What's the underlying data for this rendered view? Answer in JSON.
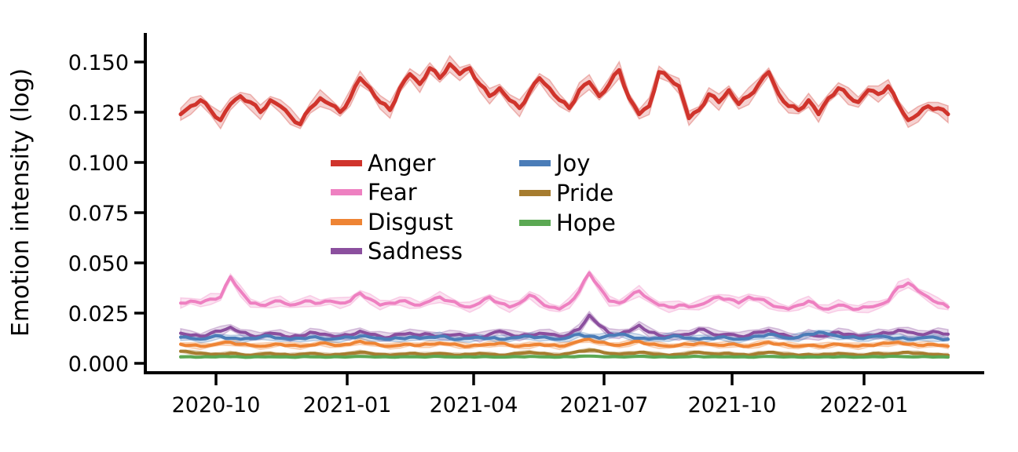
{
  "chart_data": {
    "type": "line",
    "title": "",
    "xlabel": "",
    "ylabel": "Emotion intensity (log)",
    "x_tick_labels": [
      "2020-10",
      "2021-01",
      "2021-04",
      "2021-07",
      "2021-10",
      "2022-01"
    ],
    "y_tick_labels": [
      "0.150",
      "0.125",
      "0.100",
      "0.075",
      "0.050",
      "0.025",
      "0.000"
    ],
    "y_tick_values": [
      0.15,
      0.125,
      0.1,
      0.075,
      0.05,
      0.025,
      0.0
    ],
    "ylim": [
      -0.004,
      0.165
    ],
    "x_start": "2020-09-06",
    "x_end": "2022-02-27",
    "x_step_days": 7,
    "grid": false,
    "legend_position": "upper-center-inside",
    "bands": "shaded confidence interval around each line",
    "series": [
      {
        "name": "Anger",
        "color": "#d0342c",
        "band": 0.003,
        "values": [
          0.124,
          0.128,
          0.131,
          0.126,
          0.121,
          0.129,
          0.133,
          0.13,
          0.125,
          0.131,
          0.128,
          0.123,
          0.119,
          0.127,
          0.132,
          0.129,
          0.125,
          0.132,
          0.142,
          0.137,
          0.13,
          0.126,
          0.137,
          0.144,
          0.139,
          0.147,
          0.142,
          0.149,
          0.144,
          0.147,
          0.139,
          0.133,
          0.137,
          0.131,
          0.127,
          0.135,
          0.142,
          0.137,
          0.131,
          0.127,
          0.136,
          0.14,
          0.133,
          0.139,
          0.146,
          0.132,
          0.124,
          0.128,
          0.145,
          0.142,
          0.138,
          0.122,
          0.126,
          0.134,
          0.13,
          0.136,
          0.129,
          0.133,
          0.139,
          0.145,
          0.134,
          0.128,
          0.126,
          0.131,
          0.124,
          0.132,
          0.137,
          0.133,
          0.13,
          0.136,
          0.134,
          0.138,
          0.129,
          0.121,
          0.124,
          0.128,
          0.127,
          0.124
        ]
      },
      {
        "name": "Fear",
        "color": "#ee80c1",
        "band": 0.002,
        "values": [
          0.03,
          0.031,
          0.03,
          0.032,
          0.033,
          0.043,
          0.036,
          0.03,
          0.029,
          0.03,
          0.031,
          0.029,
          0.03,
          0.031,
          0.03,
          0.031,
          0.03,
          0.031,
          0.035,
          0.032,
          0.029,
          0.03,
          0.031,
          0.03,
          0.029,
          0.031,
          0.033,
          0.031,
          0.029,
          0.028,
          0.03,
          0.033,
          0.03,
          0.028,
          0.03,
          0.034,
          0.031,
          0.028,
          0.027,
          0.03,
          0.036,
          0.045,
          0.038,
          0.031,
          0.03,
          0.033,
          0.036,
          0.032,
          0.029,
          0.028,
          0.029,
          0.028,
          0.029,
          0.031,
          0.033,
          0.032,
          0.03,
          0.033,
          0.032,
          0.03,
          0.028,
          0.027,
          0.029,
          0.031,
          0.028,
          0.027,
          0.029,
          0.028,
          0.027,
          0.028,
          0.029,
          0.031,
          0.038,
          0.04,
          0.036,
          0.033,
          0.03,
          0.028
        ]
      },
      {
        "name": "Disgust",
        "color": "#ee8434",
        "band": 0.0012,
        "values": [
          0.0095,
          0.009,
          0.0085,
          0.009,
          0.01,
          0.0105,
          0.0095,
          0.009,
          0.0085,
          0.009,
          0.0095,
          0.009,
          0.0085,
          0.009,
          0.01,
          0.0095,
          0.009,
          0.0095,
          0.011,
          0.01,
          0.009,
          0.0085,
          0.009,
          0.0095,
          0.009,
          0.0095,
          0.01,
          0.0095,
          0.009,
          0.0085,
          0.009,
          0.0095,
          0.01,
          0.009,
          0.0085,
          0.009,
          0.0095,
          0.009,
          0.0085,
          0.0095,
          0.011,
          0.012,
          0.0105,
          0.0095,
          0.009,
          0.01,
          0.011,
          0.0095,
          0.009,
          0.0085,
          0.009,
          0.0095,
          0.01,
          0.0095,
          0.009,
          0.0095,
          0.009,
          0.0085,
          0.0095,
          0.0105,
          0.0095,
          0.009,
          0.0085,
          0.009,
          0.0085,
          0.009,
          0.0095,
          0.009,
          0.0085,
          0.009,
          0.0095,
          0.01,
          0.0105,
          0.0095,
          0.009,
          0.0095,
          0.009,
          0.0085
        ]
      },
      {
        "name": "Sadness",
        "color": "#8b4f9e",
        "band": 0.0018,
        "values": [
          0.015,
          0.014,
          0.0135,
          0.015,
          0.016,
          0.018,
          0.0155,
          0.014,
          0.0135,
          0.015,
          0.0145,
          0.013,
          0.0135,
          0.0155,
          0.0145,
          0.014,
          0.0135,
          0.014,
          0.016,
          0.0145,
          0.0135,
          0.013,
          0.0145,
          0.015,
          0.014,
          0.0145,
          0.0135,
          0.014,
          0.0145,
          0.0135,
          0.013,
          0.0145,
          0.016,
          0.0145,
          0.0135,
          0.014,
          0.015,
          0.0145,
          0.0135,
          0.0145,
          0.017,
          0.024,
          0.019,
          0.015,
          0.0145,
          0.016,
          0.019,
          0.0155,
          0.014,
          0.0135,
          0.014,
          0.0145,
          0.017,
          0.0155,
          0.014,
          0.0145,
          0.0135,
          0.014,
          0.0155,
          0.0165,
          0.0145,
          0.0135,
          0.013,
          0.0145,
          0.0135,
          0.014,
          0.0155,
          0.0145,
          0.0135,
          0.014,
          0.0145,
          0.015,
          0.0165,
          0.0155,
          0.0145,
          0.015,
          0.0155,
          0.0145
        ]
      },
      {
        "name": "Joy",
        "color": "#4b7db8",
        "band": 0.0015,
        "values": [
          0.013,
          0.0125,
          0.012,
          0.013,
          0.0135,
          0.0125,
          0.012,
          0.0125,
          0.013,
          0.0135,
          0.0125,
          0.012,
          0.0125,
          0.013,
          0.0125,
          0.012,
          0.0125,
          0.013,
          0.0135,
          0.013,
          0.0125,
          0.012,
          0.0125,
          0.013,
          0.0125,
          0.013,
          0.0135,
          0.0125,
          0.012,
          0.0125,
          0.013,
          0.0125,
          0.012,
          0.0125,
          0.013,
          0.0135,
          0.013,
          0.0125,
          0.012,
          0.013,
          0.0145,
          0.0135,
          0.0125,
          0.014,
          0.0145,
          0.0135,
          0.0125,
          0.012,
          0.0125,
          0.013,
          0.0135,
          0.0125,
          0.012,
          0.0125,
          0.013,
          0.0125,
          0.012,
          0.0125,
          0.0135,
          0.0145,
          0.0135,
          0.0125,
          0.013,
          0.0145,
          0.0155,
          0.0145,
          0.0135,
          0.013,
          0.0125,
          0.013,
          0.0135,
          0.013,
          0.0125,
          0.012,
          0.0125,
          0.013,
          0.0125,
          0.012
        ]
      },
      {
        "name": "Pride",
        "color": "#a67c2f",
        "band": 0.0008,
        "values": [
          0.006,
          0.0055,
          0.005,
          0.0045,
          0.0045,
          0.005,
          0.0045,
          0.004,
          0.0045,
          0.005,
          0.0045,
          0.004,
          0.0045,
          0.005,
          0.0045,
          0.004,
          0.0045,
          0.005,
          0.0055,
          0.005,
          0.0045,
          0.004,
          0.0045,
          0.005,
          0.0045,
          0.0045,
          0.005,
          0.0045,
          0.004,
          0.0045,
          0.005,
          0.0045,
          0.004,
          0.0045,
          0.005,
          0.0055,
          0.005,
          0.0045,
          0.004,
          0.005,
          0.006,
          0.0065,
          0.006,
          0.005,
          0.0045,
          0.005,
          0.0055,
          0.005,
          0.0045,
          0.004,
          0.0045,
          0.005,
          0.0055,
          0.005,
          0.0045,
          0.005,
          0.0045,
          0.004,
          0.005,
          0.0055,
          0.005,
          0.0045,
          0.004,
          0.0045,
          0.004,
          0.0045,
          0.005,
          0.0045,
          0.004,
          0.0045,
          0.005,
          0.0045,
          0.005,
          0.0055,
          0.005,
          0.0045,
          0.0045,
          0.004
        ]
      },
      {
        "name": "Hope",
        "color": "#5ba853",
        "band": 0.0005,
        "values": [
          0.0032,
          0.0033,
          0.0031,
          0.0032,
          0.0034,
          0.0033,
          0.0032,
          0.0031,
          0.0032,
          0.0033,
          0.0032,
          0.0031,
          0.0032,
          0.0033,
          0.0032,
          0.0031,
          0.0032,
          0.0033,
          0.0034,
          0.0033,
          0.0032,
          0.0031,
          0.0032,
          0.0033,
          0.0032,
          0.0033,
          0.0034,
          0.0032,
          0.0031,
          0.0032,
          0.0033,
          0.0032,
          0.0031,
          0.0032,
          0.0033,
          0.0034,
          0.0033,
          0.0032,
          0.0031,
          0.0033,
          0.0035,
          0.0036,
          0.0034,
          0.0033,
          0.0032,
          0.0033,
          0.0035,
          0.0033,
          0.0032,
          0.0031,
          0.0032,
          0.0033,
          0.0034,
          0.0033,
          0.0032,
          0.0033,
          0.0032,
          0.0031,
          0.0033,
          0.0034,
          0.0033,
          0.0032,
          0.0031,
          0.0032,
          0.0031,
          0.0032,
          0.0033,
          0.0032,
          0.0031,
          0.0032,
          0.0033,
          0.0034,
          0.0034,
          0.0033,
          0.0032,
          0.0033,
          0.0032,
          0.0031
        ]
      }
    ]
  }
}
